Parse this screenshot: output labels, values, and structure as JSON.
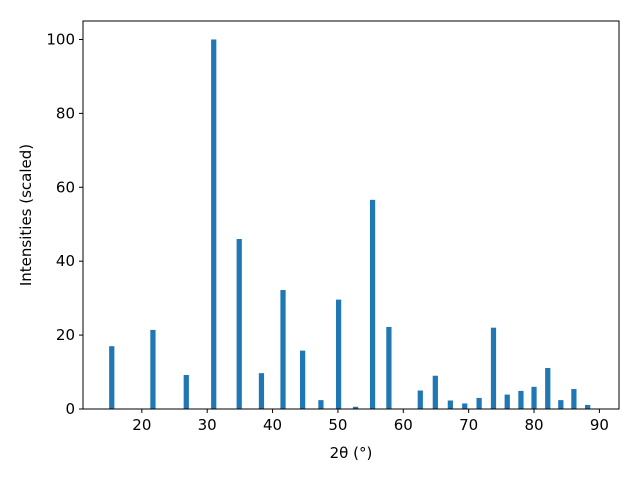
{
  "chart_data": {
    "type": "bar",
    "xlabel": "2θ (°)",
    "ylabel": "Intensities (scaled)",
    "xlim": [
      11,
      93
    ],
    "ylim": [
      0,
      105
    ],
    "grid": false,
    "bar_color": "#1f77b4",
    "bar_width": 0.8,
    "xticks": [
      20,
      30,
      40,
      50,
      60,
      70,
      80,
      90
    ],
    "yticks": [
      0,
      20,
      40,
      60,
      80,
      100
    ],
    "x": [
      15.4,
      21.7,
      26.8,
      31.0,
      34.9,
      38.3,
      41.6,
      44.6,
      47.4,
      50.1,
      52.7,
      55.3,
      57.8,
      62.6,
      64.9,
      67.2,
      69.4,
      71.6,
      73.8,
      75.9,
      78.0,
      80.0,
      82.1,
      84.1,
      86.1,
      88.2
    ],
    "values": [
      17.0,
      21.4,
      9.2,
      100.0,
      46.0,
      9.7,
      32.2,
      15.8,
      2.4,
      29.6,
      0.6,
      56.6,
      22.2,
      5.0,
      9.0,
      2.3,
      1.5,
      3.0,
      22.0,
      3.9,
      4.9,
      6.0,
      11.1,
      2.4,
      5.4,
      1.1
    ]
  }
}
